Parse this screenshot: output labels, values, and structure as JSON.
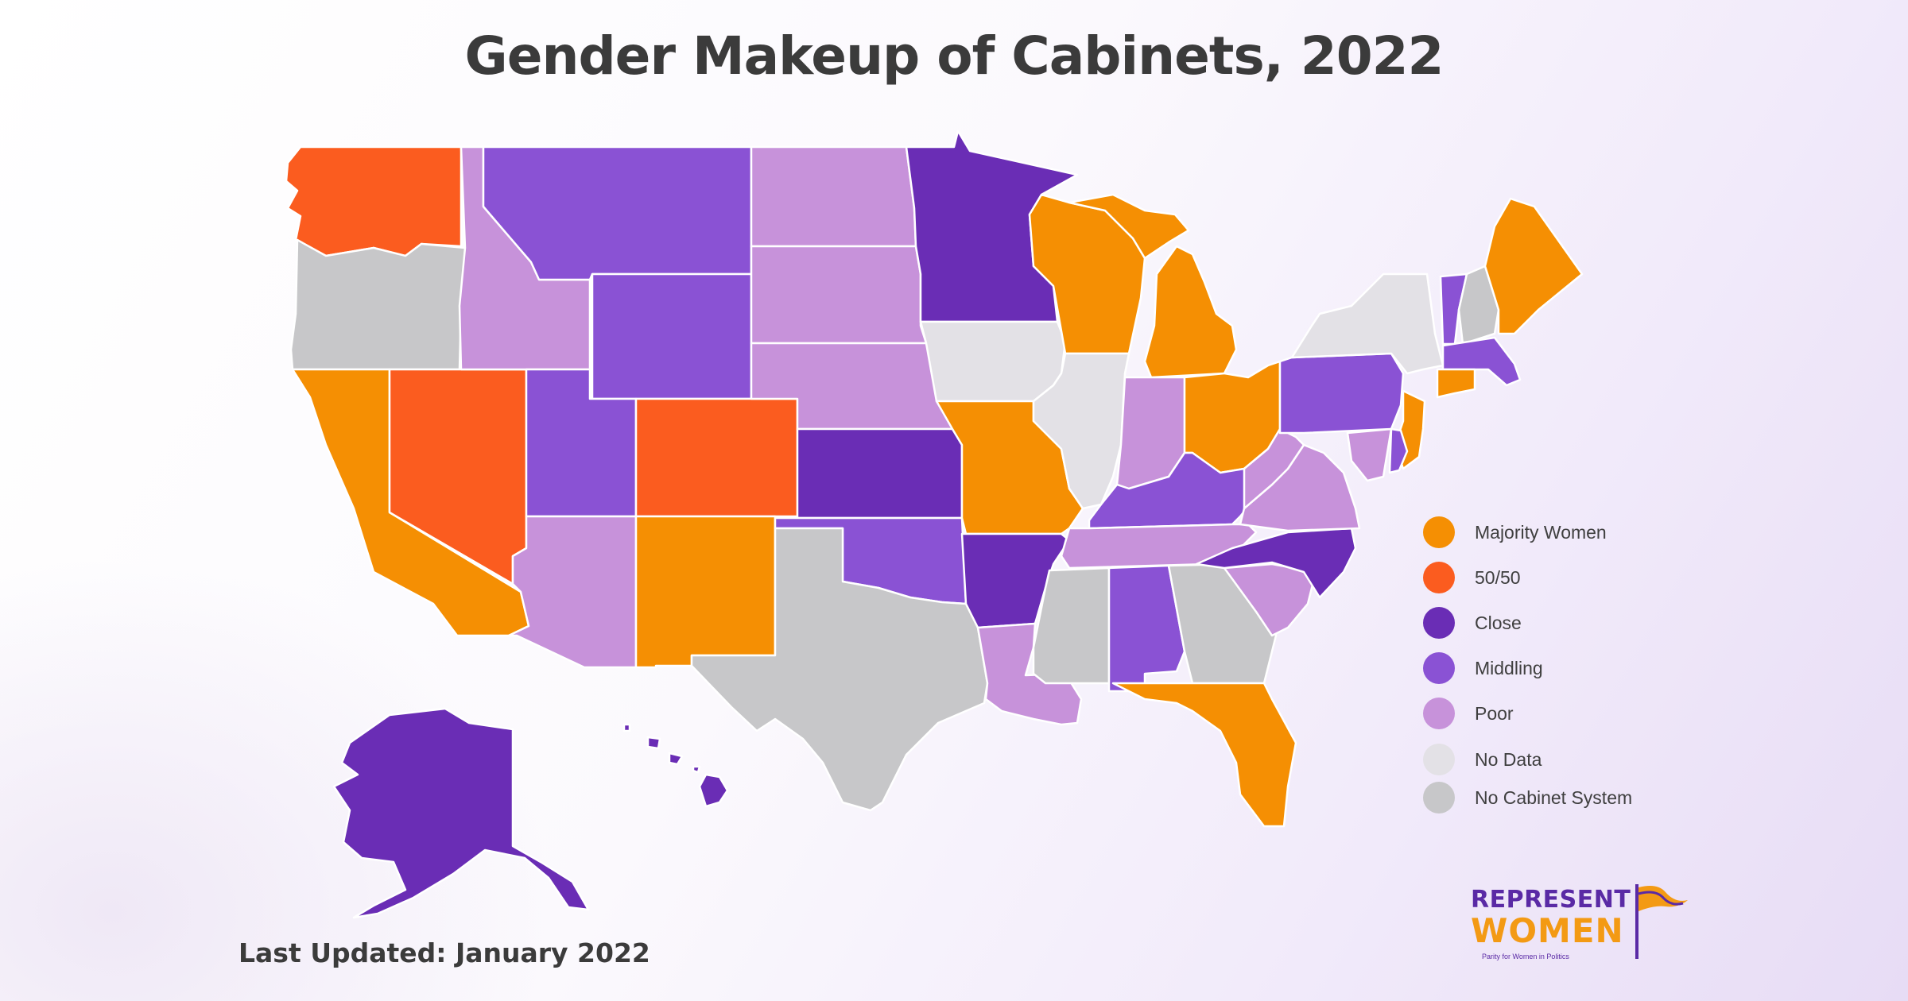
{
  "title": "Gender Makeup of Cabinets, 2022",
  "last_updated": "Last Updated: January 2022",
  "legend": [
    {
      "label": "Majority Women",
      "color": "#f58f03"
    },
    {
      "label": "50/50",
      "color": "#fb5c1f"
    },
    {
      "label": "Close",
      "color": "#6a2db5"
    },
    {
      "label": "Middling",
      "color": "#8a52d4"
    },
    {
      "label": "Poor",
      "color": "#c792da"
    },
    {
      "label": "No Data",
      "color": "#e3e1e6"
    },
    {
      "label": "No Cabinet System",
      "color": "#c7c7c9"
    }
  ],
  "states": {
    "Washington": "50/50",
    "Oregon": "No Cabinet System",
    "California": "Majority Women",
    "Nevada": "50/50",
    "Idaho": "Poor",
    "Montana": "Middling",
    "Wyoming": "Middling",
    "Utah": "Middling",
    "Arizona": "Poor",
    "Colorado": "50/50",
    "New Mexico": "Majority Women",
    "North Dakota": "Poor",
    "South Dakota": "Poor",
    "Nebraska": "Poor",
    "Kansas": "Close",
    "Oklahoma": "Middling",
    "Texas": "No Cabinet System",
    "Minnesota": "Close",
    "Iowa": "No Data",
    "Missouri": "Majority Women",
    "Arkansas": "Close",
    "Louisiana": "Poor",
    "Wisconsin": "Majority Women",
    "Illinois": "No Data",
    "Michigan": "Majority Women",
    "Indiana": "Poor",
    "Ohio": "Majority Women",
    "Kentucky": "Middling",
    "Tennessee": "Poor",
    "Mississippi": "No Cabinet System",
    "Alabama": "Middling",
    "Georgia": "No Cabinet System",
    "Florida": "Majority Women",
    "South Carolina": "Poor",
    "North Carolina": "Close",
    "Virginia": "Poor",
    "West Virginia": "Poor",
    "Pennsylvania": "Middling",
    "New York": "No Data",
    "Vermont": "Middling",
    "New Hampshire": "No Cabinet System",
    "Maine": "Majority Women",
    "Massachusetts": "Middling",
    "Connecticut": "Majority Women",
    "New Jersey": "Majority Women",
    "Maryland": "Poor",
    "Delaware": "Middling",
    "Alaska": "Close",
    "Hawaii": "Close"
  },
  "logo": {
    "line1": "REPRESENT",
    "line2": "WOMEN",
    "tagline": "Parity for Women in Politics",
    "purple": "#5a2aa5",
    "orange": "#f39a14"
  }
}
